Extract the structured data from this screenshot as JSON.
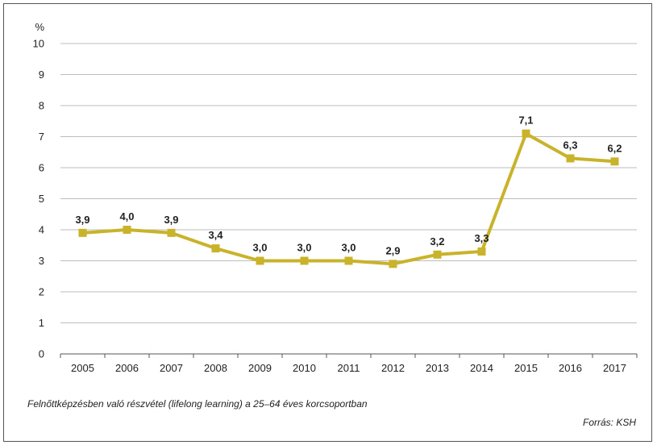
{
  "chart_data": {
    "type": "line",
    "ylabel": "%",
    "ylim": [
      0,
      10
    ],
    "y_ticks": [
      "0",
      "1",
      "2",
      "3",
      "4",
      "5",
      "6",
      "7",
      "8",
      "9",
      "10"
    ],
    "categories": [
      "2005",
      "2006",
      "2007",
      "2008",
      "2009",
      "2010",
      "2011",
      "2012",
      "2013",
      "2014",
      "2015",
      "2016",
      "2017"
    ],
    "values": [
      3.9,
      4.0,
      3.9,
      3.4,
      3.0,
      3.0,
      3.0,
      2.9,
      3.2,
      3.3,
      7.1,
      6.3,
      6.2
    ],
    "data_labels": [
      "3,9",
      "4,0",
      "3,9",
      "3,4",
      "3,0",
      "3,0",
      "3,0",
      "2,9",
      "3,2",
      "3,3",
      "7,1",
      "6,3",
      "6,2"
    ],
    "grid": true,
    "legend": "none",
    "colors": {
      "series": "#c8b32a",
      "grid": "#bdbdbd",
      "axis": "#555555"
    }
  },
  "caption": "Felnőttképzésben való részvétel (lifelong learning) a 25–64 éves korcsoportban",
  "source": "Forrás: KSH"
}
